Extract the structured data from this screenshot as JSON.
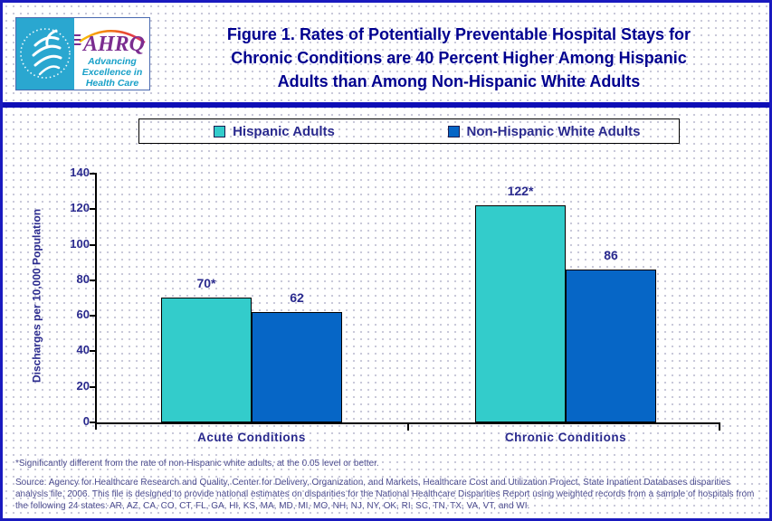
{
  "header": {
    "logo": {
      "ahrq_acronym": "AHRQ",
      "tagline_lines": [
        "Advancing",
        "Excellence in",
        "Health Care"
      ]
    },
    "title_lines": [
      "Figure 1. Rates of Potentially Preventable Hospital Stays for",
      "Chronic Conditions are 40 Percent Higher Among Hispanic",
      "Adults than Among Non-Hispanic White Adults"
    ]
  },
  "chart_data": {
    "type": "bar",
    "title": "Figure 1. Rates of Potentially Preventable Hospital Stays for Chronic Conditions are 40 Percent Higher Among Hispanic Adults than Among Non-Hispanic White Adults",
    "categories": [
      "Acute Conditions",
      "Chronic Conditions"
    ],
    "series": [
      {
        "name": "Hispanic Adults",
        "color": "#33CCCB",
        "values": [
          70,
          122
        ],
        "labels": [
          "70*",
          "122*"
        ]
      },
      {
        "name": "Non-Hispanic White Adults",
        "color": "#0666C6",
        "values": [
          62,
          86
        ],
        "labels": [
          "62",
          "86"
        ]
      }
    ],
    "xlabel": "",
    "ylabel": "Discharges per 10,000 Population",
    "ylim": [
      0,
      140
    ],
    "yticks": [
      0,
      20,
      40,
      60,
      80,
      100,
      120,
      140
    ],
    "grid": false,
    "legend_position": "top"
  },
  "footnotes": {
    "significance": "*Significantly different from the rate of non-Hispanic white adults, at the 0.05 level or better.",
    "source": "Source: Agency for Healthcare Research and Quality, Center for Delivery, Organization, and Markets, Healthcare Cost and Utilization Project, State Inpatient Databases disparities analysis file, 2006. This file is designed to provide national estimates on disparities for the National Healthcare Disparities Report using weighted records from a sample of hospitals from the following 24 states: AR, AZ, CA, CO, CT, FL, GA, HI, KS, MA, MD, MI, MO, NH, NJ, NY, OK, RI, SC, TN, TX, VA, VT, and WI."
  }
}
